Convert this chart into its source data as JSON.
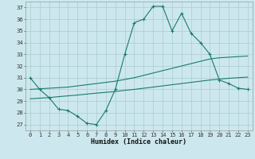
{
  "xlabel": "Humidex (Indice chaleur)",
  "xlim": [
    -0.5,
    23.5
  ],
  "ylim": [
    26.5,
    37.5
  ],
  "yticks": [
    27,
    28,
    29,
    30,
    31,
    32,
    33,
    34,
    35,
    36,
    37
  ],
  "xticks": [
    0,
    1,
    2,
    3,
    4,
    5,
    6,
    7,
    8,
    9,
    10,
    11,
    12,
    13,
    14,
    15,
    16,
    17,
    18,
    19,
    20,
    21,
    22,
    23
  ],
  "bg_color": "#cce8ee",
  "grid_color": "#aacccc",
  "line_color": "#1a7a6e",
  "line1_x": [
    0,
    1,
    2,
    3,
    4,
    5,
    6,
    7,
    8,
    9,
    10,
    11,
    12,
    13,
    14,
    15,
    16,
    17,
    18,
    19,
    20,
    21,
    22,
    23
  ],
  "line1_y": [
    31.0,
    30.0,
    29.3,
    28.3,
    28.2,
    27.7,
    27.1,
    27.0,
    28.2,
    30.0,
    33.0,
    35.7,
    36.0,
    37.1,
    37.1,
    35.0,
    36.5,
    34.8,
    34.0,
    33.0,
    30.8,
    30.5,
    30.1,
    30.0
  ],
  "line2_x": [
    0,
    1,
    2,
    3,
    4,
    5,
    6,
    7,
    8,
    9,
    10,
    11,
    12,
    13,
    14,
    15,
    16,
    17,
    18,
    19,
    20,
    21,
    22,
    23
  ],
  "line2_y": [
    30.0,
    30.05,
    30.1,
    30.15,
    30.2,
    30.3,
    30.4,
    30.5,
    30.6,
    30.7,
    30.85,
    31.0,
    31.2,
    31.4,
    31.6,
    31.8,
    32.0,
    32.2,
    32.4,
    32.6,
    32.7,
    32.75,
    32.8,
    32.85
  ],
  "line3_x": [
    0,
    1,
    2,
    3,
    4,
    5,
    6,
    7,
    8,
    9,
    10,
    11,
    12,
    13,
    14,
    15,
    16,
    17,
    18,
    19,
    20,
    21,
    22,
    23
  ],
  "line3_y": [
    29.2,
    29.25,
    29.3,
    29.38,
    29.45,
    29.52,
    29.6,
    29.68,
    29.75,
    29.82,
    29.92,
    30.0,
    30.1,
    30.2,
    30.3,
    30.4,
    30.5,
    30.6,
    30.7,
    30.8,
    30.88,
    30.95,
    31.0,
    31.05
  ]
}
